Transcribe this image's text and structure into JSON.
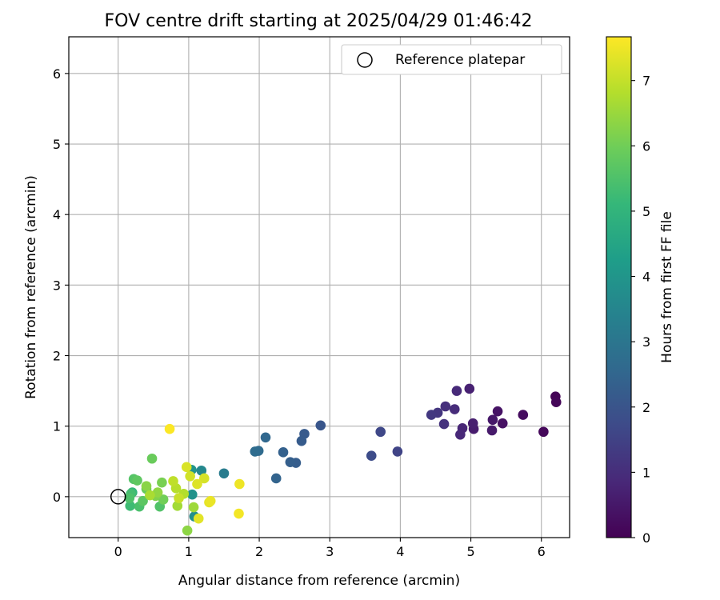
{
  "chart_data": {
    "type": "scatter",
    "title": "FOV centre drift starting at 2025/04/29 01:46:42",
    "xlabel": "Angular distance from reference (arcmin)",
    "ylabel": "Rotation from reference (arcmin)",
    "xlim": [
      -0.7,
      6.4
    ],
    "ylim": [
      -0.58,
      6.52
    ],
    "xticks": [
      "0",
      "1",
      "2",
      "3",
      "4",
      "5",
      "6"
    ],
    "yticks": [
      "0",
      "1",
      "2",
      "3",
      "4",
      "5",
      "6"
    ],
    "grid": true,
    "legend": {
      "placement": "top-right",
      "entries": [
        "Reference platepar"
      ]
    },
    "reference_point": {
      "x": 0,
      "y": 0,
      "marker": "open circle"
    },
    "colorbar": {
      "label": "Hours from first FF file",
      "range": [
        0,
        7.67
      ],
      "ticks": [
        "0",
        "1",
        "2",
        "3",
        "4",
        "5",
        "6",
        "7"
      ],
      "colormap": "viridis"
    },
    "points": [
      {
        "x": 6.2,
        "y": 1.42,
        "c": 0.05
      },
      {
        "x": 6.21,
        "y": 1.34,
        "c": 0.1
      },
      {
        "x": 6.03,
        "y": 0.92,
        "c": 0.15
      },
      {
        "x": 5.74,
        "y": 1.16,
        "c": 0.25
      },
      {
        "x": 5.45,
        "y": 1.04,
        "c": 0.35
      },
      {
        "x": 5.38,
        "y": 1.21,
        "c": 0.4
      },
      {
        "x": 5.31,
        "y": 1.09,
        "c": 0.5
      },
      {
        "x": 5.3,
        "y": 0.94,
        "c": 0.55
      },
      {
        "x": 5.04,
        "y": 0.96,
        "c": 0.6
      },
      {
        "x": 5.03,
        "y": 1.04,
        "c": 0.65
      },
      {
        "x": 4.98,
        "y": 1.53,
        "c": 0.7
      },
      {
        "x": 4.88,
        "y": 0.97,
        "c": 0.8
      },
      {
        "x": 4.85,
        "y": 0.88,
        "c": 0.85
      },
      {
        "x": 4.8,
        "y": 1.5,
        "c": 0.9
      },
      {
        "x": 4.77,
        "y": 1.24,
        "c": 0.95
      },
      {
        "x": 4.64,
        "y": 1.28,
        "c": 1.05
      },
      {
        "x": 4.62,
        "y": 1.03,
        "c": 1.1
      },
      {
        "x": 4.53,
        "y": 1.19,
        "c": 1.2
      },
      {
        "x": 4.44,
        "y": 1.16,
        "c": 1.25
      },
      {
        "x": 3.96,
        "y": 0.64,
        "c": 1.55
      },
      {
        "x": 3.72,
        "y": 0.92,
        "c": 1.65
      },
      {
        "x": 3.59,
        "y": 0.58,
        "c": 1.75
      },
      {
        "x": 2.87,
        "y": 1.01,
        "c": 2.05
      },
      {
        "x": 2.64,
        "y": 0.89,
        "c": 2.15
      },
      {
        "x": 2.6,
        "y": 0.79,
        "c": 2.2
      },
      {
        "x": 2.52,
        "y": 0.48,
        "c": 2.25
      },
      {
        "x": 2.44,
        "y": 0.49,
        "c": 2.3
      },
      {
        "x": 2.34,
        "y": 0.63,
        "c": 2.35
      },
      {
        "x": 2.24,
        "y": 0.26,
        "c": 2.45
      },
      {
        "x": 2.09,
        "y": 0.84,
        "c": 2.55
      },
      {
        "x": 1.99,
        "y": 0.65,
        "c": 2.65
      },
      {
        "x": 1.94,
        "y": 0.64,
        "c": 2.7
      },
      {
        "x": 1.5,
        "y": 0.33,
        "c": 3.2
      },
      {
        "x": 1.18,
        "y": 0.37,
        "c": 3.6
      },
      {
        "x": 1.08,
        "y": -0.28,
        "c": 3.8
      },
      {
        "x": 1.05,
        "y": 0.03,
        "c": 3.9
      },
      {
        "x": 1.04,
        "y": 0.38,
        "c": 3.95
      },
      {
        "x": 0.2,
        "y": 0.06,
        "c": 5.1
      },
      {
        "x": 0.17,
        "y": -0.13,
        "c": 5.25
      },
      {
        "x": 0.18,
        "y": 0.04,
        "c": 5.35
      },
      {
        "x": 0.3,
        "y": -0.14,
        "c": 5.45
      },
      {
        "x": 0.16,
        "y": -0.02,
        "c": 5.5
      },
      {
        "x": 0.59,
        "y": -0.14,
        "c": 5.55
      },
      {
        "x": 0.22,
        "y": 0.25,
        "c": 5.6
      },
      {
        "x": 0.35,
        "y": -0.06,
        "c": 5.7
      },
      {
        "x": 0.27,
        "y": 0.23,
        "c": 5.75
      },
      {
        "x": 0.4,
        "y": 0.11,
        "c": 5.85
      },
      {
        "x": 0.48,
        "y": 0.54,
        "c": 5.9
      },
      {
        "x": 0.64,
        "y": -0.04,
        "c": 6.0
      },
      {
        "x": 0.62,
        "y": 0.2,
        "c": 6.1
      },
      {
        "x": 0.53,
        "y": 0.01,
        "c": 6.2
      },
      {
        "x": 0.4,
        "y": 0.15,
        "c": 6.3
      },
      {
        "x": 0.98,
        "y": -0.48,
        "c": 6.35
      },
      {
        "x": 0.56,
        "y": 0.06,
        "c": 6.4
      },
      {
        "x": 1.07,
        "y": -0.15,
        "c": 6.55
      },
      {
        "x": 0.84,
        "y": -0.13,
        "c": 6.6
      },
      {
        "x": 0.45,
        "y": 0.02,
        "c": 6.7
      },
      {
        "x": 0.93,
        "y": 0.04,
        "c": 6.8
      },
      {
        "x": 0.82,
        "y": 0.12,
        "c": 6.85
      },
      {
        "x": 0.78,
        "y": 0.22,
        "c": 6.95
      },
      {
        "x": 0.86,
        "y": -0.02,
        "c": 7.05
      },
      {
        "x": 1.02,
        "y": 0.29,
        "c": 7.15
      },
      {
        "x": 1.22,
        "y": 0.26,
        "c": 7.2
      },
      {
        "x": 0.97,
        "y": 0.42,
        "c": 7.25
      },
      {
        "x": 1.12,
        "y": 0.18,
        "c": 7.3
      },
      {
        "x": 1.14,
        "y": -0.31,
        "c": 7.35
      },
      {
        "x": 1.29,
        "y": -0.08,
        "c": 7.4
      },
      {
        "x": 1.31,
        "y": -0.06,
        "c": 7.45
      },
      {
        "x": 1.72,
        "y": 0.18,
        "c": 7.5
      },
      {
        "x": 1.71,
        "y": -0.24,
        "c": 7.55
      },
      {
        "x": 0.73,
        "y": 0.96,
        "c": 7.65
      }
    ]
  }
}
